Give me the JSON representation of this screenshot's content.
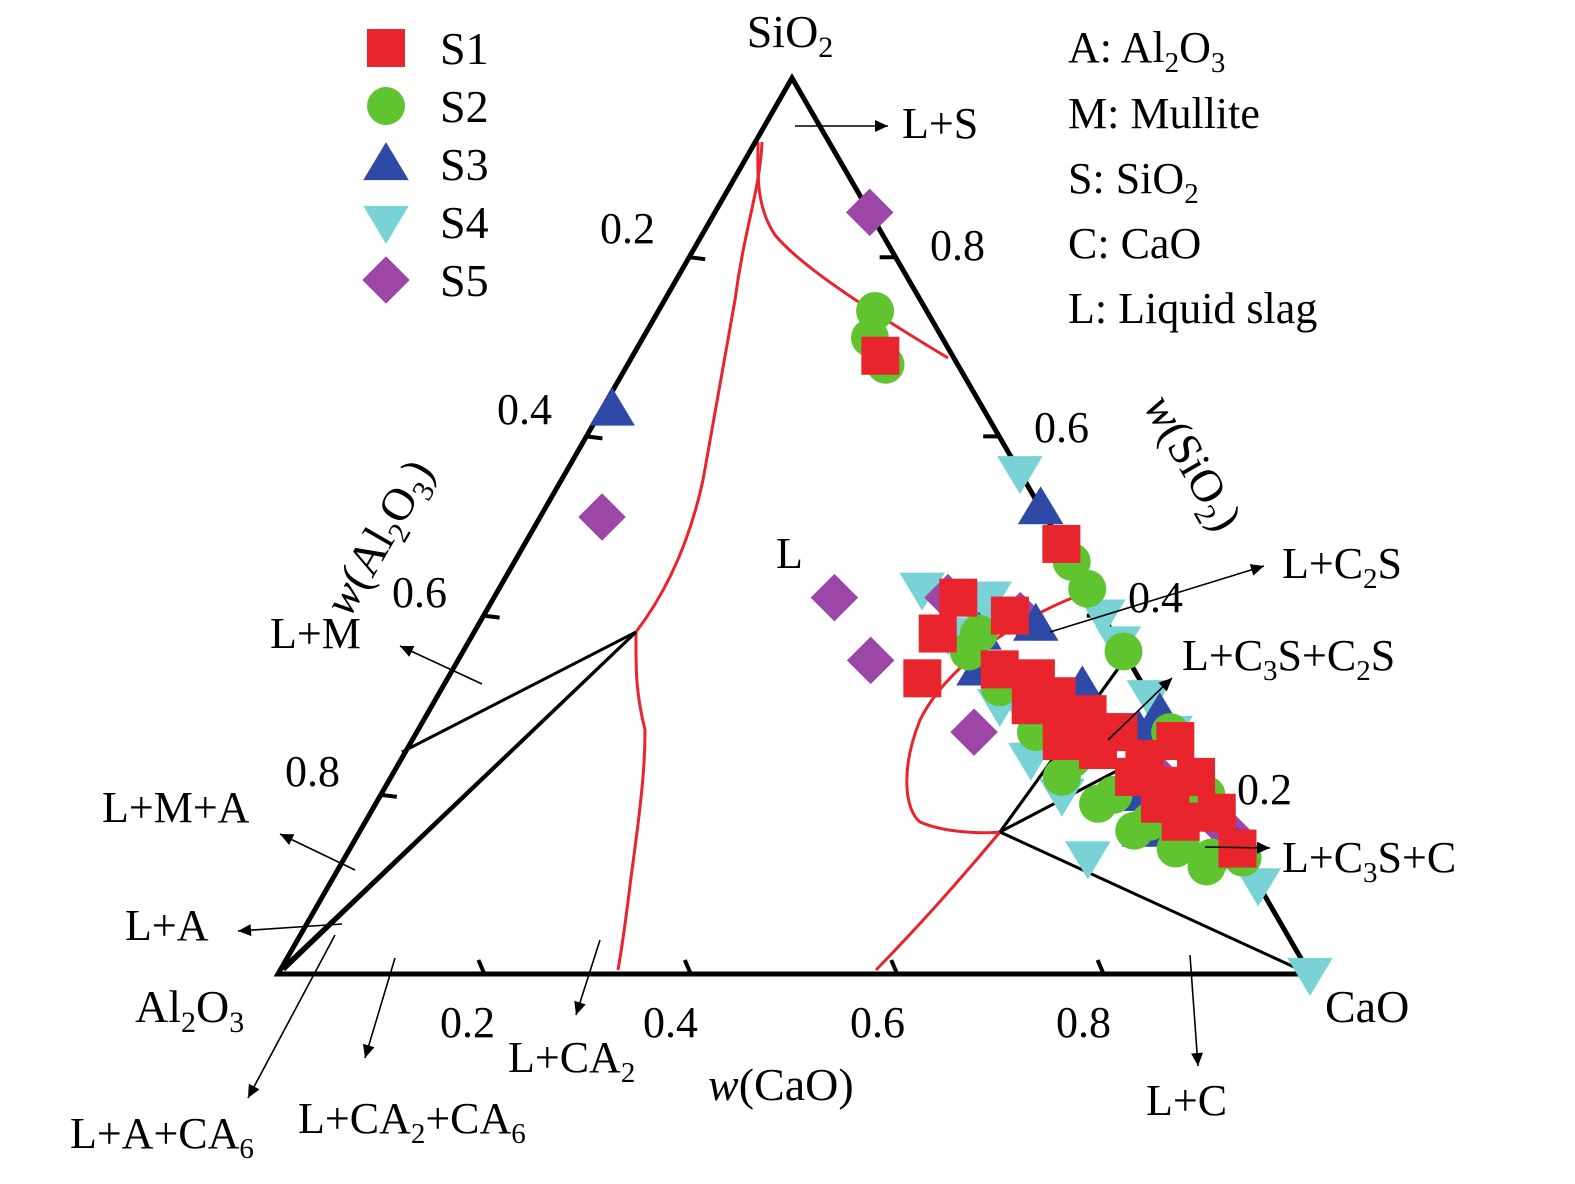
{
  "chart_data": {
    "type": "scatter",
    "subtype": "ternary",
    "vertices": {
      "top": {
        "base": "SiO",
        "sub": "2"
      },
      "left": {
        "base": "Al",
        "sub1": "2",
        "mid": "O",
        "sub2": "3"
      },
      "right": "CaO"
    },
    "axes": {
      "left": {
        "label_prefix": "w",
        "label_open": "(Al",
        "sub1": "2",
        "mid": "O",
        "sub2": "3",
        "close": ")",
        "ticks": [
          "0.2",
          "0.4",
          "0.6",
          "0.8"
        ]
      },
      "right": {
        "label_prefix": "w",
        "label_open": "(SiO",
        "sub": "2",
        "close": ")",
        "ticks": [
          "0.8",
          "0.6",
          "0.4",
          "0.2"
        ]
      },
      "bottom": {
        "label_prefix": "w",
        "label_rest": "(CaO)",
        "ticks": [
          "0.2",
          "0.4",
          "0.6",
          "0.8"
        ]
      }
    },
    "legend": {
      "placement": "top-left",
      "entries": [
        "S1",
        "S2",
        "S3",
        "S4",
        "S5"
      ]
    },
    "abbreviations": [
      {
        "code": "A:",
        "base": "Al",
        "sub1": "2",
        "mid": "O",
        "sub2": "3"
      },
      {
        "code": "M:",
        "text": "Mullite"
      },
      {
        "code": "S:",
        "base": "SiO",
        "sub1": "2"
      },
      {
        "code": "C:",
        "text": "CaO"
      },
      {
        "code": "L:",
        "text": "Liquid slag"
      }
    ],
    "phase_labels": [
      {
        "parts": [
          {
            "t": "L+S"
          }
        ]
      },
      {
        "parts": [
          {
            "t": "L"
          }
        ]
      },
      {
        "parts": [
          {
            "t": "L+C"
          },
          {
            "t": "2",
            "s": 1
          },
          {
            "t": "S"
          }
        ]
      },
      {
        "parts": [
          {
            "t": "L+C"
          },
          {
            "t": "3",
            "s": 1
          },
          {
            "t": "S+C"
          },
          {
            "t": "2",
            "s": 1
          },
          {
            "t": "S"
          }
        ]
      },
      {
        "parts": [
          {
            "t": "L+C"
          },
          {
            "t": "3",
            "s": 1
          },
          {
            "t": "S+C"
          }
        ]
      },
      {
        "parts": [
          {
            "t": "L+C"
          }
        ]
      },
      {
        "parts": [
          {
            "t": "L+M"
          }
        ]
      },
      {
        "parts": [
          {
            "t": "L+M+A"
          }
        ]
      },
      {
        "parts": [
          {
            "t": "L+A"
          }
        ]
      },
      {
        "parts": [
          {
            "t": "L+A+CA"
          },
          {
            "t": "6",
            "s": 1
          }
        ]
      },
      {
        "parts": [
          {
            "t": "L+CA"
          },
          {
            "t": "2",
            "s": 1
          },
          {
            "t": "+CA"
          },
          {
            "t": "6",
            "s": 1
          }
        ]
      },
      {
        "parts": [
          {
            "t": "L+CA"
          },
          {
            "t": "2",
            "s": 1
          }
        ]
      }
    ],
    "colors": {
      "S1": "#e8242c",
      "S2": "#5fc430",
      "S3": "#2e4aa6",
      "S4": "#79d3d6",
      "S5": "#9c46a8",
      "liquidus": "#e8242c",
      "tie_lines": "#000000"
    },
    "series": [
      {
        "name": "S1",
        "marker": "square",
        "points": [
          [
            0.33,
            0.21,
            0.46
          ],
          [
            0.38,
            0.17,
            0.45
          ],
          [
            0.42,
            0.13,
            0.45
          ],
          [
            0.4,
            0.09,
            0.51
          ],
          [
            0.48,
            0.0,
            0.52
          ],
          [
            0.69,
            0.07,
            0.24
          ],
          [
            0.21,
            0.03,
            0.76
          ],
          [
            0.24,
            0.04,
            0.72
          ],
          [
            0.27,
            0.05,
            0.68
          ],
          [
            0.29,
            0.07,
            0.64
          ],
          [
            0.31,
            0.09,
            0.6
          ],
          [
            0.33,
            0.1,
            0.57
          ],
          [
            0.25,
            0.08,
            0.67
          ],
          [
            0.28,
            0.1,
            0.62
          ],
          [
            0.3,
            0.12,
            0.58
          ],
          [
            0.22,
            0.06,
            0.72
          ],
          [
            0.19,
            0.05,
            0.76
          ],
          [
            0.17,
            0.04,
            0.79
          ],
          [
            0.34,
            0.13,
            0.53
          ],
          [
            0.26,
            0.11,
            0.63
          ],
          [
            0.14,
            0.0,
            0.86
          ],
          [
            0.18,
            0.0,
            0.82
          ],
          [
            0.22,
            0.0,
            0.78
          ],
          [
            0.26,
            0.0,
            0.74
          ]
        ]
      },
      {
        "name": "S2",
        "marker": "circle",
        "points": [
          [
            0.71,
            0.07,
            0.22
          ],
          [
            0.74,
            0.05,
            0.21
          ],
          [
            0.68,
            0.07,
            0.25
          ],
          [
            0.38,
            0.13,
            0.49
          ],
          [
            0.36,
            0.15,
            0.49
          ],
          [
            0.32,
            0.14,
            0.54
          ],
          [
            0.29,
            0.12,
            0.59
          ],
          [
            0.27,
            0.13,
            0.6
          ],
          [
            0.24,
            0.11,
            0.65
          ],
          [
            0.2,
            0.09,
            0.71
          ],
          [
            0.17,
            0.07,
            0.76
          ],
          [
            0.15,
            0.05,
            0.8
          ],
          [
            0.13,
            0.03,
            0.84
          ],
          [
            0.22,
            0.13,
            0.65
          ],
          [
            0.19,
            0.11,
            0.7
          ],
          [
            0.16,
            0.09,
            0.75
          ],
          [
            0.14,
            0.06,
            0.8
          ],
          [
            0.12,
            0.04,
            0.84
          ],
          [
            0.13,
            0.0,
            0.87
          ],
          [
            0.2,
            0.0,
            0.8
          ],
          [
            0.27,
            0.0,
            0.73
          ],
          [
            0.36,
            0.0,
            0.64
          ],
          [
            0.43,
            0.0,
            0.57
          ],
          [
            0.46,
            0.0,
            0.54
          ],
          [
            0.48,
            0.0,
            0.52
          ]
        ]
      },
      {
        "name": "S3",
        "marker": "triangle-up",
        "points": [
          [
            0.63,
            0.36,
            0.01
          ],
          [
            0.39,
            0.07,
            0.54
          ],
          [
            0.38,
            0.13,
            0.49
          ],
          [
            0.34,
            0.15,
            0.51
          ],
          [
            0.3,
            0.1,
            0.6
          ],
          [
            0.32,
            0.06,
            0.62
          ],
          [
            0.27,
            0.03,
            0.7
          ],
          [
            0.2,
            0.07,
            0.73
          ],
          [
            0.16,
            0.08,
            0.76
          ],
          [
            0.52,
            0.0,
            0.48
          ],
          [
            0.29,
            0.0,
            0.71
          ],
          [
            0.14,
            0.0,
            0.86
          ]
        ]
      },
      {
        "name": "S4",
        "marker": "triangle-down",
        "points": [
          [
            0.13,
            0.15,
            0.72
          ],
          [
            0.24,
            0.15,
            0.61
          ],
          [
            0.3,
            0.15,
            0.55
          ],
          [
            0.38,
            0.16,
            0.46
          ],
          [
            0.43,
            0.16,
            0.41
          ],
          [
            0.42,
            0.1,
            0.48
          ],
          [
            0.4,
            0.12,
            0.48
          ],
          [
            0.28,
            0.13,
            0.59
          ],
          [
            0.34,
            0.14,
            0.52
          ],
          [
            0.2,
            0.14,
            0.66
          ],
          [
            0.0,
            0.0,
            1.0
          ],
          [
            0.1,
            0.0,
            0.9
          ],
          [
            0.27,
            0.0,
            0.73
          ],
          [
            0.31,
            0.0,
            0.69
          ],
          [
            0.37,
            0.0,
            0.63
          ],
          [
            0.4,
            0.0,
            0.6
          ],
          [
            0.56,
            0.0,
            0.44
          ]
        ]
      },
      {
        "name": "S5",
        "marker": "diamond",
        "points": [
          [
            0.51,
            0.43,
            0.06
          ],
          [
            0.35,
            0.25,
            0.4
          ],
          [
            0.42,
            0.25,
            0.33
          ],
          [
            0.27,
            0.19,
            0.54
          ],
          [
            0.42,
            0.14,
            0.44
          ],
          [
            0.4,
            0.08,
            0.52
          ],
          [
            0.16,
            0.0,
            0.84
          ],
          [
            0.23,
            0.04,
            0.73
          ],
          [
            0.85,
            0.0,
            0.15
          ]
        ]
      }
    ]
  }
}
